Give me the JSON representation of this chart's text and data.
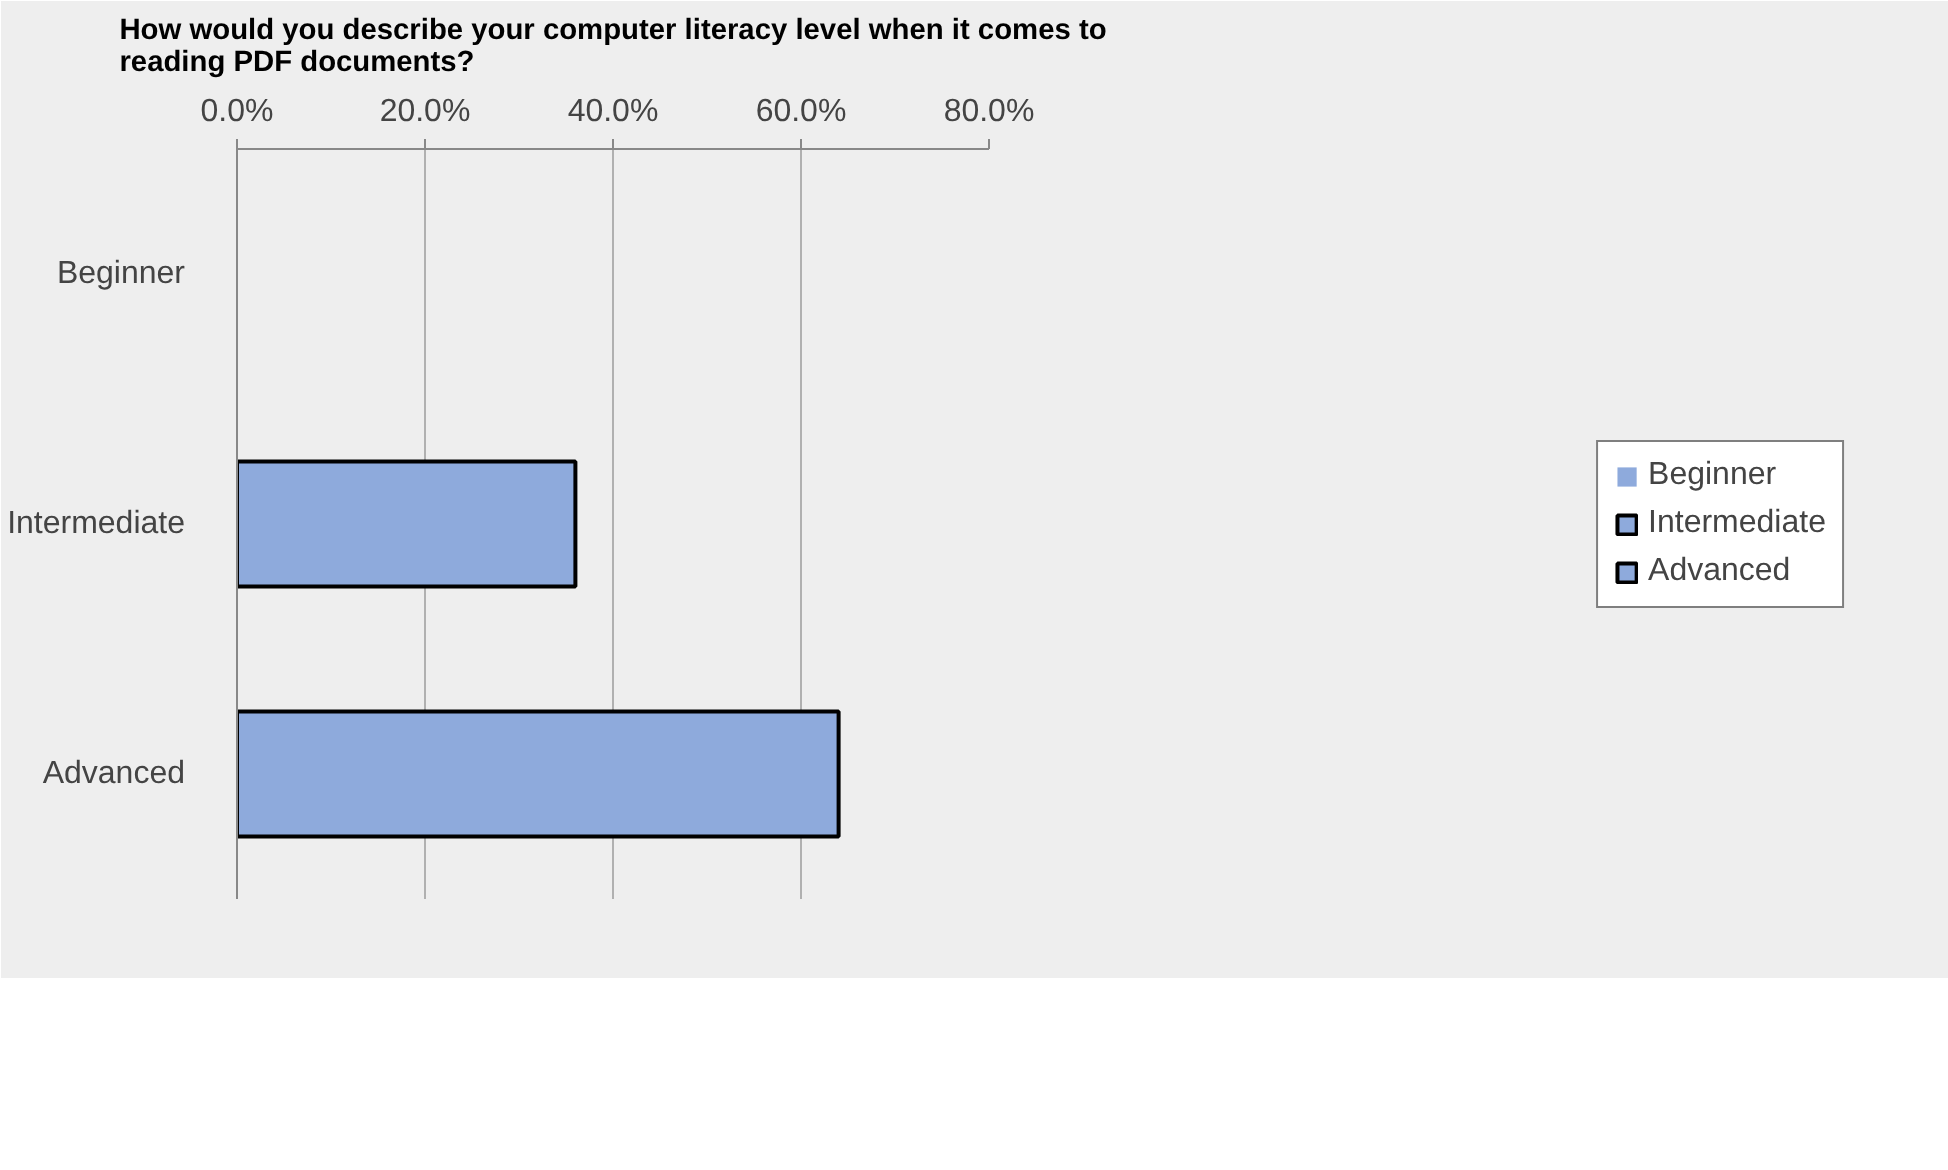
{
  "chart_data": {
    "type": "bar",
    "orientation": "horizontal",
    "title": "How would you describe your computer literacy level when it comes to reading PDF documents?",
    "categories": [
      "Beginner",
      "Intermediate",
      "Advanced"
    ],
    "series": [
      {
        "name": "Beginner",
        "color": "#8eaadc",
        "values": [
          0,
          null,
          null
        ]
      },
      {
        "name": "Intermediate",
        "color": "#8eaadc",
        "values": [
          null,
          36,
          null
        ]
      },
      {
        "name": "Advanced",
        "color": "#8eaadc",
        "values": [
          null,
          null,
          64
        ]
      }
    ],
    "xlim": [
      0,
      80
    ],
    "xticks": [
      {
        "value": 0,
        "label": "0.0%"
      },
      {
        "value": 20,
        "label": "20.0%"
      },
      {
        "value": 40,
        "label": "40.0%"
      },
      {
        "value": 60,
        "label": "60.0%"
      },
      {
        "value": 80,
        "label": "80.0%"
      }
    ],
    "grid": "x",
    "legend": "right"
  }
}
